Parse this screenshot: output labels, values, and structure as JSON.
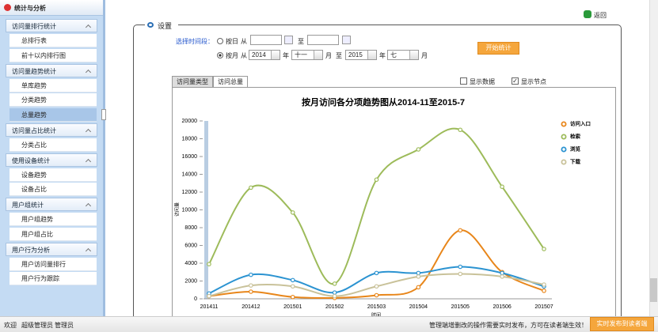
{
  "sidebar": {
    "title": "统计与分析",
    "groups": [
      {
        "title": "访问量排行统计",
        "items": [
          "总排行表",
          "前十以内排行图"
        ]
      },
      {
        "title": "访问量趋势统计",
        "items": [
          "单库趋势",
          "分类趋势",
          "总量趋势"
        ]
      },
      {
        "title": "访问量占比统计",
        "items": [
          "分类占比"
        ]
      },
      {
        "title": "使用设备统计",
        "items": [
          "设备趋势",
          "设备占比"
        ]
      },
      {
        "title": "用户组统计",
        "items": [
          "用户组趋势",
          "用户组占比"
        ]
      },
      {
        "title": "用户行为分析",
        "items": [
          "用户访问量排行",
          "用户行为跟踪"
        ]
      }
    ]
  },
  "back": "返回",
  "settings": {
    "title": "设置",
    "period_label": "选择时间段：",
    "by_day": "按日",
    "from": "从",
    "to": "至",
    "by_month": "按月",
    "start_year": "2014",
    "year": "年",
    "start_month": "十一",
    "month": "月",
    "end_year": "2015",
    "end_month": "七",
    "start_button": "开始统计"
  },
  "tabs": [
    "访问量类型",
    "访问总量"
  ],
  "options": [
    "显示数据",
    "显示节点"
  ],
  "chart_data": {
    "type": "line",
    "title": "按月访问各分项趋势图从2014-11至2015-7",
    "y_label": "访问量",
    "x_label": "时间",
    "categories": [
      "201411",
      "201412",
      "201501",
      "201502",
      "201503",
      "201504",
      "201505",
      "201506",
      "201507"
    ],
    "series": [
      {
        "name": "访问入口",
        "color": "#e8861a",
        "values": [
          300,
          800,
          200,
          100,
          400,
          1300,
          7700,
          3000,
          900
        ]
      },
      {
        "name": "检索",
        "color": "#9dbb5a",
        "values": [
          3900,
          12500,
          9700,
          1700,
          13400,
          16800,
          19000,
          12600,
          5600
        ]
      },
      {
        "name": "浏览",
        "color": "#2b93d1",
        "values": [
          600,
          2700,
          2100,
          700,
          2900,
          2900,
          3600,
          2900,
          1400
        ]
      },
      {
        "name": "下载",
        "color": "#c9c29a",
        "values": [
          300,
          1500,
          1400,
          300,
          1400,
          2500,
          2800,
          2500,
          1600
        ]
      }
    ],
    "ylim": [
      0,
      20000
    ],
    "yticks": [
      0,
      2000,
      4000,
      6000,
      8000,
      10000,
      12000,
      14000,
      16000,
      18000,
      20000
    ],
    "grid": false,
    "smooth": true,
    "markers": true
  },
  "footer": {
    "welcome": "欢迎",
    "user": "超级管理员",
    "role": "管理员",
    "notice": "管理端增删改的操作需要实时发布，方可在读者端生效！",
    "publish_button": "实时发布到读者端"
  }
}
